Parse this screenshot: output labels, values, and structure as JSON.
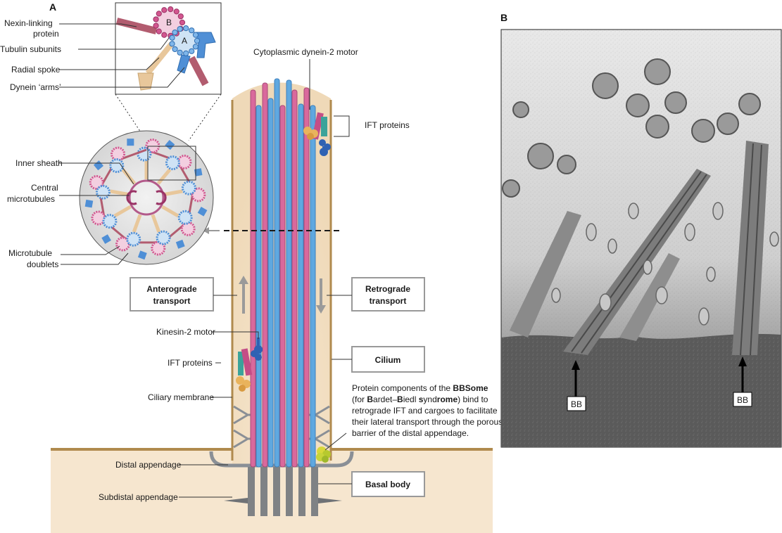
{
  "panels": {
    "a": "A",
    "b": "B"
  },
  "inset": {
    "nexin": [
      "Nexin-linking",
      "protein"
    ],
    "tubulin": "Tubulin subunits",
    "radial": "Radial spoke",
    "dynein": "Dynein ‘arms’",
    "tubule_b": "B",
    "tubule_a": "A"
  },
  "cross_section": {
    "inner_sheath": "Inner sheath",
    "central": [
      "Central",
      "microtubules"
    ],
    "doublets": [
      "Microtubule",
      "doublets"
    ]
  },
  "labels": {
    "cyto_dynein": "Cytoplasmic dynein-2 motor",
    "ift_top": "IFT proteins",
    "ift_left": "IFT proteins",
    "kinesin": "Kinesin-2 motor",
    "ciliary_membrane": "Ciliary membrane",
    "distal": "Distal appendage",
    "subdistal": "Subdistal appendage"
  },
  "boxes": {
    "anterograde": [
      "Anterograde",
      "transport"
    ],
    "retrograde": [
      "Retrograde",
      "transport"
    ],
    "cilium": "Cilium",
    "basal_body": "Basal body"
  },
  "bbsome_note": {
    "line1_pre": "Protein components of the ",
    "line1_bold": "BBSome",
    "line2": [
      "(for ",
      "B",
      "ardet–",
      "B",
      "iedl ",
      "s",
      "ynd",
      "rome",
      ") bind to"
    ],
    "line3": "retrograde IFT and cargoes to facilitate",
    "line4": "their lateral transport through the porous",
    "line5": "barrier of the distal appendage."
  },
  "micrograph": {
    "bb_left": "BB",
    "bb_right": "BB"
  },
  "colors": {
    "cytoplasm": "#f6e6cf",
    "membrane": "#b08a4e",
    "microtubule_blue": "#5fa8e0",
    "microtubule_pink": "#d9699c",
    "basal_gray": "#7f8285"
  }
}
